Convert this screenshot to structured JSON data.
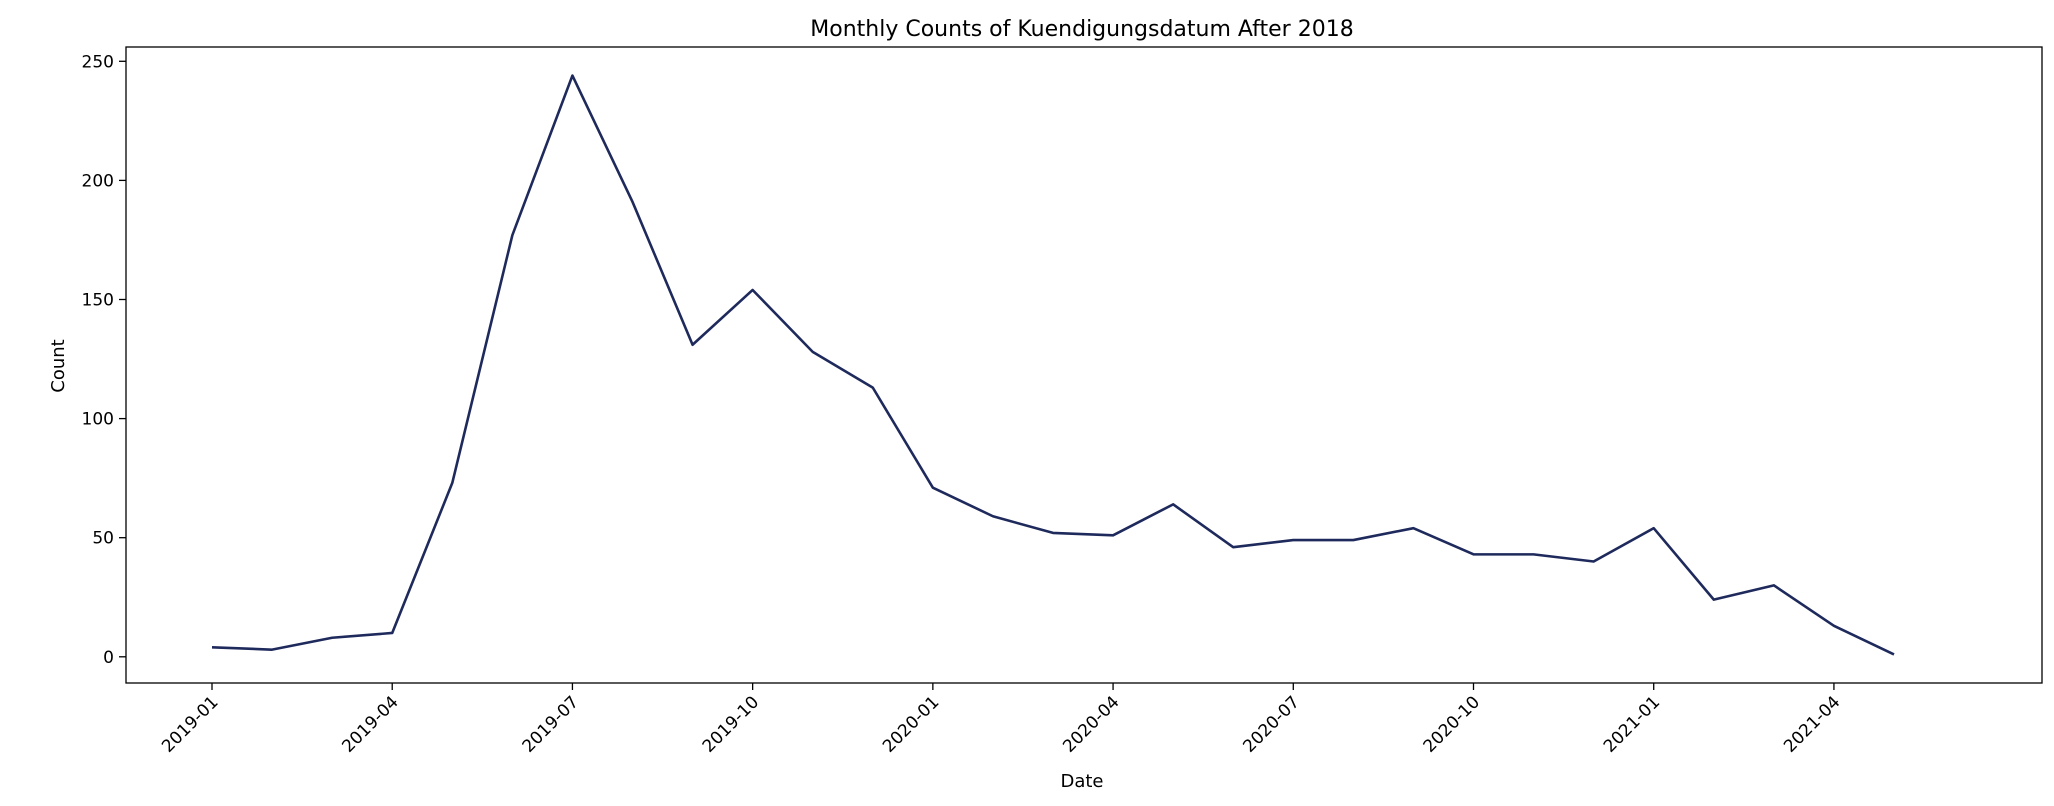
{
  "chart_data": {
    "type": "line",
    "title": "Monthly Counts of Kuendigungsdatum After 2018",
    "xlabel": "Date",
    "ylabel": "Count",
    "x": [
      "2019-01",
      "2019-02",
      "2019-03",
      "2019-04",
      "2019-05",
      "2019-06",
      "2019-07",
      "2019-08",
      "2019-09",
      "2019-10",
      "2019-11",
      "2019-12",
      "2020-01",
      "2020-02",
      "2020-03",
      "2020-04",
      "2020-05",
      "2020-06",
      "2020-07",
      "2020-08",
      "2020-09",
      "2020-10",
      "2020-11",
      "2020-12",
      "2021-01",
      "2021-02",
      "2021-03",
      "2021-04",
      "2021-05"
    ],
    "x_tick_labels": [
      "2019-01",
      "2019-04",
      "2019-07",
      "2019-10",
      "2020-01",
      "2020-04",
      "2020-07",
      "2020-10",
      "2021-01",
      "2021-04"
    ],
    "y_ticks": [
      0,
      50,
      100,
      150,
      200,
      250
    ],
    "ylim": [
      -11,
      256
    ],
    "grid": false,
    "legend": false,
    "series": [
      {
        "color": "#1f2a5c",
        "values": [
          4,
          3,
          8,
          10,
          73,
          177,
          244,
          191,
          131,
          154,
          128,
          113,
          71,
          59,
          52,
          51,
          64,
          46,
          49,
          49,
          54,
          43,
          43,
          40,
          54,
          24,
          30,
          13,
          1
        ]
      }
    ]
  }
}
